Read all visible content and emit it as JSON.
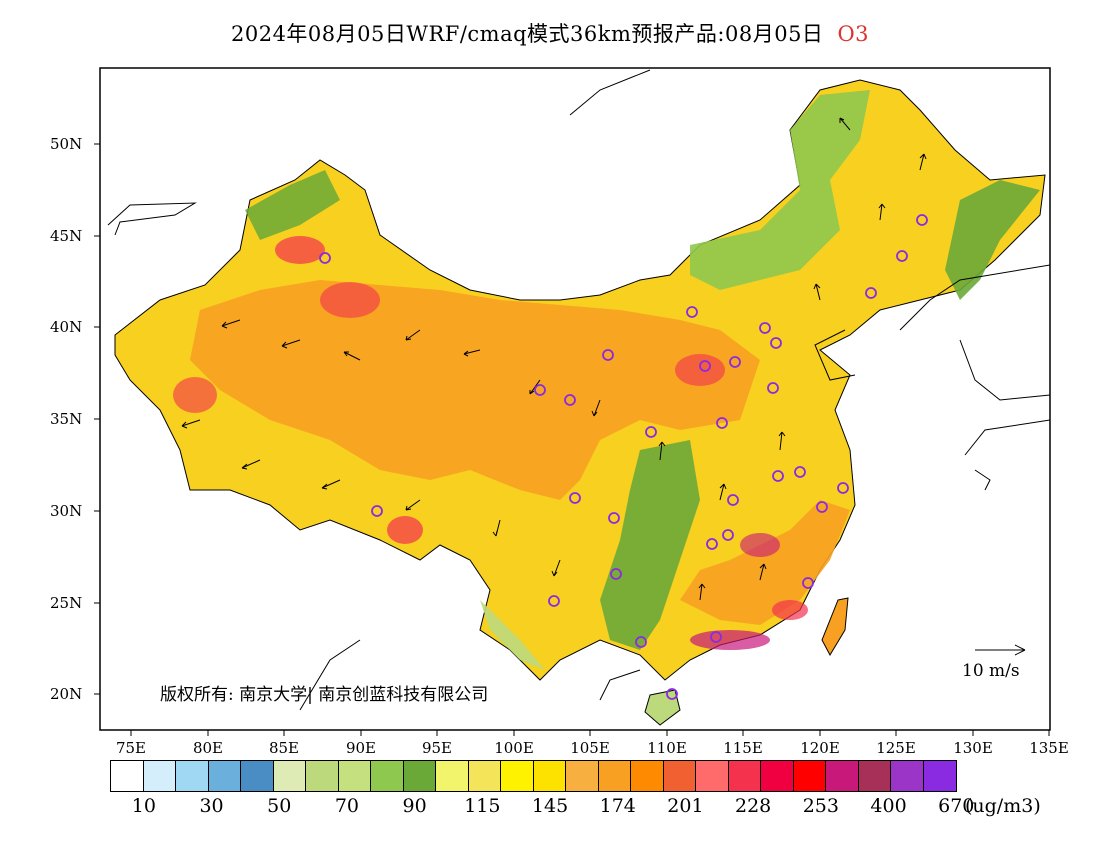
{
  "title": {
    "text": "2024年08月05日WRF/cmaq模式36km预报产品:08月05日",
    "pollutant": "O3"
  },
  "axes": {
    "lat_labels": [
      "50N",
      "45N",
      "40N",
      "35N",
      "30N",
      "25N",
      "20N"
    ],
    "lon_labels": [
      "75E",
      "80E",
      "85E",
      "90E",
      "95E",
      "100E",
      "105E",
      "110E",
      "115E",
      "120E",
      "125E",
      "130E",
      "135E"
    ]
  },
  "copyright": "版权所有: 南京大学| 南京创蓝科技有限公司",
  "wind_scale": {
    "label": "10 m/s"
  },
  "colorbar": {
    "colors": [
      "#ffffff",
      "#d4eefb",
      "#a0d8f3",
      "#6bb0dd",
      "#4a8cc4",
      "#dfebb5",
      "#bcd97c",
      "#c5e07e",
      "#8fc84e",
      "#6aa937",
      "#f2f56b",
      "#f4e45a",
      "#fff200",
      "#fde200",
      "#f7b040",
      "#f7a022",
      "#fd8a00",
      "#f06030",
      "#ff6b6b",
      "#f4324e",
      "#f00040",
      "#ff0000",
      "#c8187a",
      "#a63058",
      "#9a35c8",
      "#8a2be2"
    ],
    "labels": [
      "10",
      "30",
      "50",
      "70",
      "90",
      "115",
      "145",
      "174",
      "201",
      "228",
      "253",
      "400",
      "670"
    ],
    "unit": "(ug/m3)"
  },
  "colors": {
    "pollutant": "#e03030",
    "frame": "#000000",
    "station_marker": "#8a2be2"
  }
}
